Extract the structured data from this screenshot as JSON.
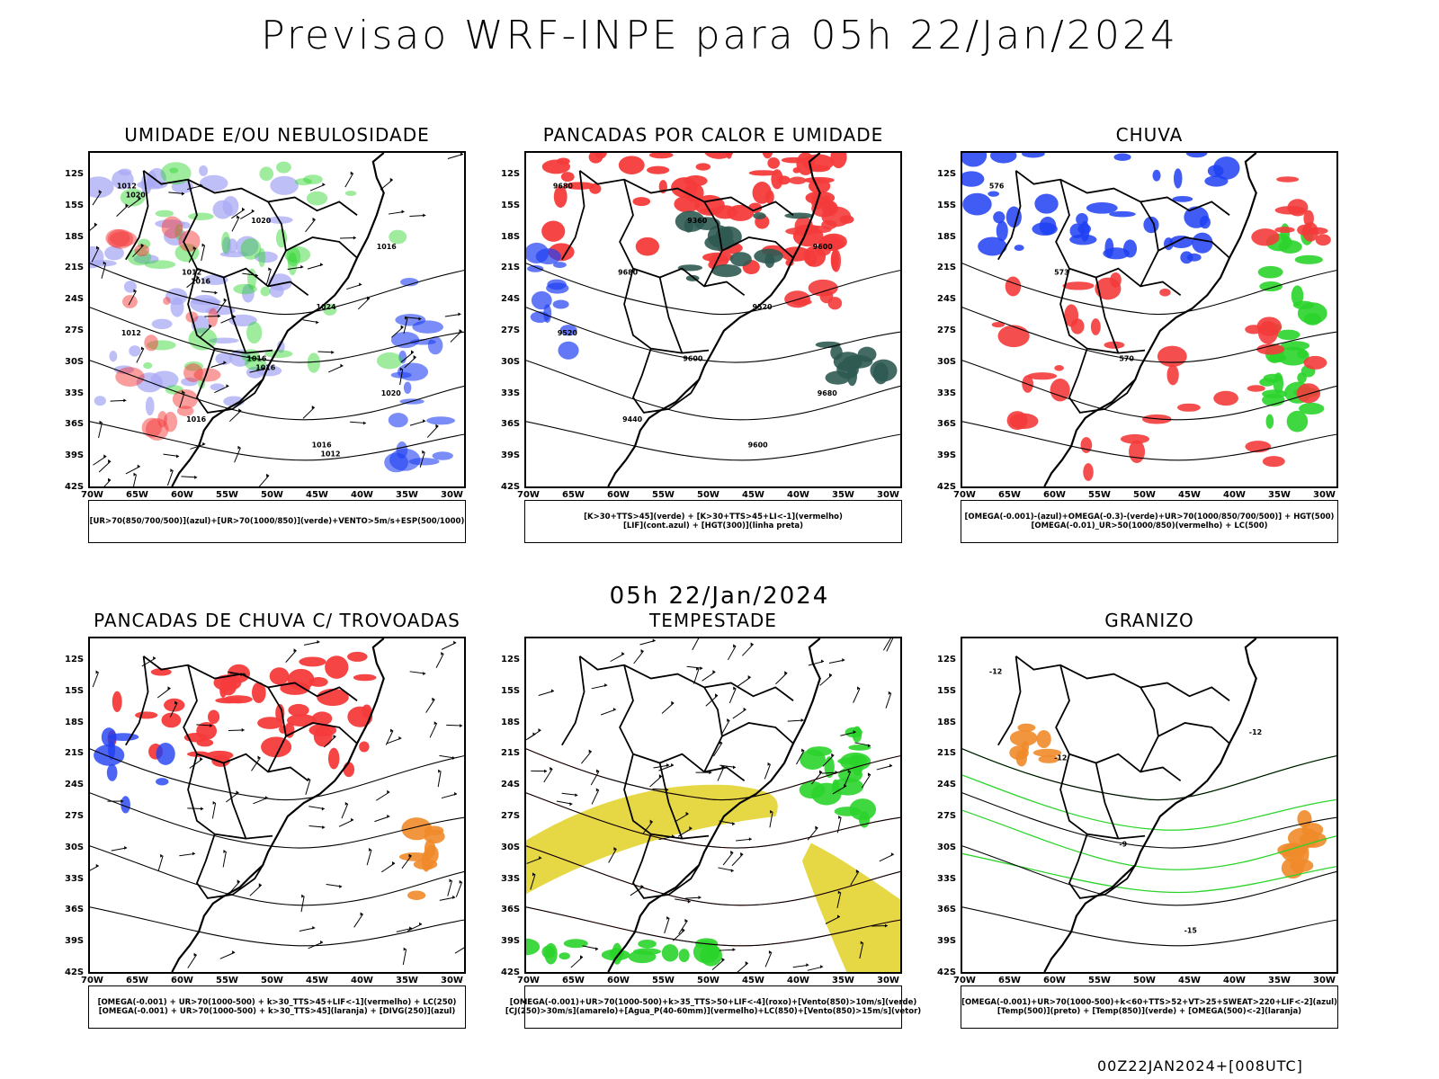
{
  "header": {
    "title": "Previsao WRF-INPE  para 05h 22/Jan/2024"
  },
  "mid_date": "05h 22/Jan/2024",
  "run_stamp": "00Z22JAN2024+[008UTC]",
  "axes": {
    "lat_labels": [
      "12S",
      "15S",
      "18S",
      "21S",
      "24S",
      "27S",
      "30S",
      "33S",
      "36S",
      "39S",
      "42S"
    ],
    "lon_labels": [
      "70W",
      "65W",
      "60W",
      "55W",
      "50W",
      "45W",
      "40W",
      "35W",
      "30W"
    ]
  },
  "colors": {
    "red": "#f43b3b",
    "green": "#2bd42b",
    "blue": "#1f3ff2",
    "lavender": "#a9a9f4",
    "dark_teal": "#2f5a52",
    "yellow": "#e2d430",
    "orange": "#f08a2a",
    "contour": "#000000"
  },
  "panels": [
    {
      "id": "p1",
      "title": "UMIDADE E/OU NEBULOSIDADE",
      "legend": [
        "[UR>70(850/700/500)](azul)+[UR>70(1000/850)](verde)+VENTO>5m/s+ESP(500/1000)"
      ],
      "contour_labels": [
        "1012",
        "1012",
        "1016",
        "1016",
        "1016",
        "1012",
        "1016",
        "1020",
        "1024",
        "1020",
        "1020",
        "1016",
        "1016",
        "1012"
      ]
    },
    {
      "id": "p2",
      "title": "PANCADAS POR CALOR E UMIDADE",
      "legend": [
        "[K>30+TTS>45](verde) + [K>30+TTS>45+LI<-1](vermelho)",
        "[LIF](cont.azul) + [HGT(300)](linha preta)"
      ],
      "contour_labels": [
        "9680",
        "9680",
        "9600",
        "9600",
        "9600",
        "9520",
        "9440",
        "9360",
        "9520",
        "9680"
      ]
    },
    {
      "id": "p3",
      "title": "CHUVA",
      "legend": [
        "[OMEGA(-0.001)-(azul)+OMEGA(-0.3)-(verde)+UR>70(1000/850/700/500)] + HGT(500)",
        "[OMEGA(-0.01)_UR>50(1000/850)(vermelho) + LC(500)"
      ],
      "contour_labels": [
        "576",
        "573",
        "570"
      ]
    },
    {
      "id": "p4",
      "title": "PANCADAS DE CHUVA C/ TROVOADAS",
      "legend": [
        "[OMEGA(-0.001) + UR>70(1000-500) + k>30_TTS>45+LIF<-1](vermelho) + LC(250)",
        "[OMEGA(-0.001) + UR>70(1000-500) + k>30_TTS>45](laranja) + [DIVG(250)](azul)"
      ],
      "contour_labels": []
    },
    {
      "id": "p5",
      "title": "TEMPESTADE",
      "legend": [
        "[OMEGA(-0.001)+UR>70(1000-500)+k>35_TTS>50+LIF<-4](roxo)+[Vento(850)>10m/s](verde)",
        "[CJ(250)>30m/s](amarelo)+[Agua_P(40-60mm)](vermelho)+LC(850)+[Vento(850)>15m/s](vetor)"
      ],
      "contour_labels": []
    },
    {
      "id": "p6",
      "title": "GRANIZO",
      "legend": [
        "[OMEGA(-0.001)+UR>70(1000-500)+k<60+TTS>52+VT>25+SWEAT>220+LIF<-2](azul)",
        "[Temp(500)](preto) + [Temp(850)](verde) + [OMEGA(500)<-2](laranja)"
      ],
      "contour_labels": [
        "-12",
        "-12",
        "-9",
        "-15",
        "-12"
      ]
    }
  ]
}
